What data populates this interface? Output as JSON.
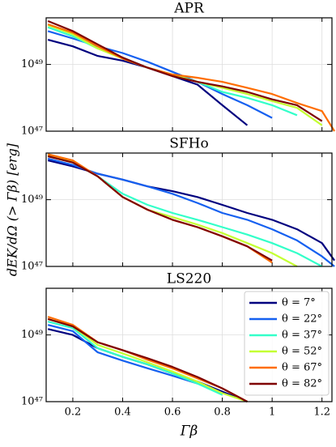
{
  "chart_data": [
    {
      "type": "line",
      "title": "APR",
      "x": [
        0.1,
        0.2,
        0.3,
        0.4,
        0.5,
        0.6,
        0.7,
        0.8,
        0.9,
        1.0,
        1.1,
        1.2,
        1.25
      ],
      "series": [
        {
          "name": "θ = 7°",
          "color": "#00007f",
          "values": [
            5.5e+49,
            3.5e+49,
            1.8e+49,
            1.3e+49,
            8e+48,
            4.5e+48,
            2.5e+48,
            6e+47,
            1.5e+47,
            null,
            null,
            null,
            null
          ]
        },
        {
          "name": "θ = 22°",
          "color": "#1560f0",
          "values": [
            1e+50,
            6e+49,
            3.5e+49,
            2.2e+49,
            1.2e+49,
            6e+48,
            3e+48,
            1.3e+48,
            6e+47,
            2.5e+47,
            null,
            null,
            null
          ]
        },
        {
          "name": "θ = 37°",
          "color": "#33ffc9",
          "values": [
            1.3e+50,
            7e+49,
            3e+49,
            1.6e+49,
            8e+48,
            5e+48,
            3e+48,
            1.5e+48,
            1e+48,
            6e+47,
            3e+47,
            null,
            null
          ]
        },
        {
          "name": "θ = 52°",
          "color": "#c4ff33",
          "values": [
            1.5e+50,
            8e+49,
            3e+49,
            1.5e+49,
            8e+48,
            5e+48,
            3e+48,
            2e+48,
            1.3e+48,
            8e+47,
            5e+47,
            1.5e+47,
            null
          ]
        },
        {
          "name": "θ = 67°",
          "color": "#ff6d00",
          "values": [
            1.6e+50,
            9e+49,
            3.5e+49,
            1.5e+49,
            8e+48,
            5e+48,
            4e+48,
            3e+48,
            2e+48,
            1.3e+48,
            7e+47,
            4e+47,
            1e+47
          ]
        },
        {
          "name": "θ = 82°",
          "color": "#7f0000",
          "values": [
            2e+50,
            1e+50,
            4e+49,
            1.6e+49,
            8e+48,
            4.5e+48,
            3e+48,
            2.2e+48,
            1.5e+48,
            9e+47,
            6e+47,
            2e+47,
            null
          ]
        }
      ],
      "xlim": [
        0.093,
        1.24
      ],
      "xticks": [
        0.2,
        0.4,
        0.6,
        0.8,
        1.0,
        1.2
      ],
      "ylim": [
        1e+47,
        2.5e+50
      ],
      "yticks": [
        {
          "value": 1e+47,
          "label": "10⁴⁷"
        },
        {
          "value": 1e+49,
          "label": "10⁴⁹"
        }
      ],
      "log_y": true,
      "grid": true
    },
    {
      "type": "line",
      "title": "SFHo",
      "ylabel": "dEK/dΩ (> Γβ) [erg]",
      "x": [
        0.1,
        0.2,
        0.3,
        0.4,
        0.5,
        0.6,
        0.7,
        0.8,
        0.9,
        1.0,
        1.1,
        1.2,
        1.25
      ],
      "series": [
        {
          "name": "θ = 7°",
          "color": "#00007f",
          "values": [
            1.5e+50,
            1e+50,
            6e+49,
            4e+49,
            2.5e+49,
            1.8e+49,
            1.2e+49,
            7e+48,
            4e+48,
            2.5e+48,
            1.3e+48,
            5e+47,
            1.5e+47
          ]
        },
        {
          "name": "θ = 22°",
          "color": "#1560f0",
          "values": [
            1.7e+50,
            1.1e+50,
            6e+49,
            4e+49,
            2.5e+49,
            1.5e+49,
            8e+48,
            4e+48,
            2.5e+48,
            1.3e+48,
            6e+47,
            2e+47,
            1e+47
          ]
        },
        {
          "name": "θ = 37°",
          "color": "#33ffc9",
          "values": [
            2e+50,
            1.3e+50,
            5e+49,
            1.5e+49,
            7e+48,
            4e+48,
            2.5e+48,
            1.5e+48,
            9e+47,
            5e+47,
            2.5e+47,
            1e+47,
            null
          ]
        },
        {
          "name": "θ = 52°",
          "color": "#c4ff33",
          "values": [
            2.2e+50,
            1.4e+50,
            5e+49,
            1.2e+49,
            5e+48,
            3e+48,
            1.8e+48,
            1e+48,
            5e+47,
            2.5e+47,
            1e+47,
            null,
            null
          ]
        },
        {
          "name": "θ = 67°",
          "color": "#ff6d00",
          "values": [
            2.3e+50,
            1.5e+50,
            5e+49,
            1.2e+49,
            5e+48,
            2.5e+48,
            1.5e+48,
            8e+47,
            4e+47,
            1.3e+47,
            null,
            null,
            null
          ]
        },
        {
          "name": "θ = 82°",
          "color": "#7f0000",
          "values": [
            2e+50,
            1.3e+50,
            5e+49,
            1.2e+49,
            5e+48,
            2.5e+48,
            1.5e+48,
            8e+47,
            4e+47,
            1.5e+47,
            null,
            null,
            null
          ]
        }
      ],
      "xlim": [
        0.093,
        1.24
      ],
      "xticks": [
        0.2,
        0.4,
        0.6,
        0.8,
        1.0,
        1.2
      ],
      "ylim": [
        1e+47,
        2.5e+50
      ],
      "yticks": [
        {
          "value": 1e+47,
          "label": "10⁴⁷"
        },
        {
          "value": 1e+49,
          "label": "10⁴⁹"
        }
      ],
      "log_y": true,
      "grid": true
    },
    {
      "type": "line",
      "title": "LS220",
      "xlabel": "Γβ",
      "x": [
        0.1,
        0.2,
        0.3,
        0.4,
        0.5,
        0.6,
        0.7,
        0.8,
        0.9,
        1.0,
        1.1,
        1.2,
        1.25
      ],
      "series": [
        {
          "name": "θ = 7°",
          "color": "#00007f",
          "values": [
            1.5e+49,
            1e+49,
            4e+48,
            2.2e+48,
            1.3e+48,
            7e+47,
            4e+47,
            2e+47,
            1e+47,
            null,
            null,
            null,
            null
          ]
        },
        {
          "name": "θ = 22°",
          "color": "#1560f0",
          "values": [
            2e+49,
            1.3e+49,
            3e+48,
            1.7e+48,
            1e+48,
            6e+47,
            3.5e+47,
            1.8e+47,
            null,
            null,
            null,
            null,
            null
          ]
        },
        {
          "name": "θ = 37°",
          "color": "#33ffc9",
          "values": [
            2.5e+49,
            1.6e+49,
            4e+48,
            2.2e+48,
            1.3e+48,
            7e+47,
            3.5e+47,
            1.6e+47,
            null,
            null,
            null,
            null,
            null
          ]
        },
        {
          "name": "θ = 52°",
          "color": "#c4ff33",
          "values": [
            3e+49,
            1.8e+49,
            5e+48,
            2.8e+48,
            1.5e+48,
            8e+47,
            4e+47,
            1.8e+47,
            1e+47,
            null,
            null,
            null,
            null
          ]
        },
        {
          "name": "θ = 67°",
          "color": "#ff6d00",
          "values": [
            3.5e+49,
            2e+49,
            6e+48,
            3.5e+48,
            1.8e+48,
            1e+48,
            5e+47,
            2.5e+47,
            1e+47,
            null,
            null,
            null,
            null
          ]
        },
        {
          "name": "θ = 82°",
          "color": "#7f0000",
          "values": [
            3e+49,
            1.8e+49,
            6e+48,
            3.5e+48,
            2e+48,
            1.1e+48,
            5.5e+47,
            2.5e+47,
            1e+47,
            null,
            null,
            null,
            null
          ]
        }
      ],
      "xlim": [
        0.093,
        1.24
      ],
      "xticks": [
        0.2,
        0.4,
        0.6,
        0.8,
        1.0,
        1.2
      ],
      "xticklabels": true,
      "ylim": [
        1e+47,
        2.5e+50
      ],
      "yticks": [
        {
          "value": 1e+47,
          "label": "10⁴⁷"
        },
        {
          "value": 1e+49,
          "label": "10⁴⁹"
        }
      ],
      "log_y": true,
      "grid": true,
      "legend": "upper right"
    }
  ]
}
